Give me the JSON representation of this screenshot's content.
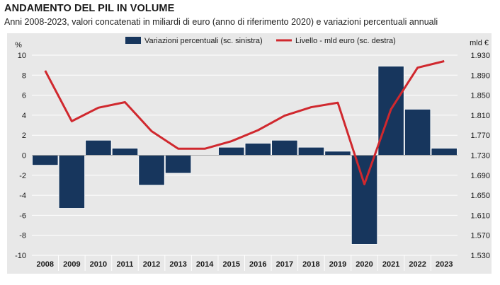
{
  "header": {
    "title": "ANDAMENTO DEL PIL IN VOLUME",
    "subtitle": "Anni 2008-2023, valori concatenati in miliardi di euro (anno di riferimento 2020) e variazioni percentuali annuali"
  },
  "colors": {
    "bars": "#17365d",
    "line": "#d0282e",
    "plot_bg": "#e8e8e8",
    "grid": "#ffffff"
  },
  "chart_data": {
    "type": "bar+line",
    "categories": [
      "2008",
      "2009",
      "2010",
      "2011",
      "2012",
      "2013",
      "2014",
      "2015",
      "2016",
      "2017",
      "2018",
      "2019",
      "2020",
      "2021",
      "2022",
      "2023"
    ],
    "series": [
      {
        "name": "Variazioni percentuali (sc. sinistra)",
        "type": "bar",
        "axis": "left",
        "values": [
          -1.0,
          -5.3,
          1.5,
          0.7,
          -3.0,
          -1.8,
          0.0,
          0.8,
          1.2,
          1.5,
          0.8,
          0.4,
          -8.9,
          8.9,
          4.6,
          0.7
        ]
      },
      {
        "name": "Livello - mld euro (sc. destra)",
        "type": "line",
        "axis": "right",
        "values": [
          1899,
          1798,
          1825,
          1836,
          1778,
          1743,
          1743,
          1758,
          1780,
          1809,
          1826,
          1835,
          1672,
          1822,
          1905,
          1918
        ]
      }
    ],
    "y_left": {
      "label": "%",
      "range": [
        -10,
        10
      ],
      "ticks": [
        "-10",
        "-8",
        "-6",
        "-4",
        "-2",
        "0",
        "2",
        "4",
        "6",
        "8",
        "10"
      ]
    },
    "y_right": {
      "label": "mld €",
      "range": [
        1530,
        1930
      ],
      "ticks": [
        "1.530",
        "1.570",
        "1.610",
        "1.650",
        "1.690",
        "1.730",
        "1.770",
        "1.810",
        "1.850",
        "1.890",
        "1.930"
      ]
    },
    "grid": true,
    "legend": "top"
  }
}
